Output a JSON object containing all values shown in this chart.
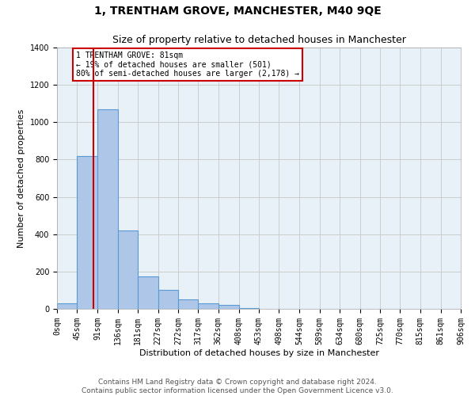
{
  "title": "1, TRENTHAM GROVE, MANCHESTER, M40 9QE",
  "subtitle": "Size of property relative to detached houses in Manchester",
  "xlabel": "Distribution of detached houses by size in Manchester",
  "ylabel": "Number of detached properties",
  "bar_edges": [
    0,
    45,
    91,
    136,
    181,
    227,
    272,
    317,
    362,
    408,
    453,
    498,
    544,
    589,
    634,
    680,
    725,
    770,
    815,
    861,
    906
  ],
  "bar_heights": [
    30,
    820,
    1070,
    420,
    175,
    100,
    50,
    30,
    20,
    5,
    0,
    0,
    0,
    0,
    0,
    0,
    0,
    0,
    0,
    0
  ],
  "bar_color": "#aec6e8",
  "bar_edge_color": "#5b9bd5",
  "property_line_x": 81,
  "property_line_color": "#cc0000",
  "annotation_text": "1 TRENTHAM GROVE: 81sqm\n← 19% of detached houses are smaller (501)\n80% of semi-detached houses are larger (2,178) →",
  "annotation_box_color": "#cc0000",
  "ylim": [
    0,
    1400
  ],
  "yticks": [
    0,
    200,
    400,
    600,
    800,
    1000,
    1200,
    1400
  ],
  "x_tick_labels": [
    "0sqm",
    "45sqm",
    "91sqm",
    "136sqm",
    "181sqm",
    "227sqm",
    "272sqm",
    "317sqm",
    "362sqm",
    "408sqm",
    "453sqm",
    "498sqm",
    "544sqm",
    "589sqm",
    "634sqm",
    "680sqm",
    "725sqm",
    "770sqm",
    "815sqm",
    "861sqm",
    "906sqm"
  ],
  "footer_line1": "Contains HM Land Registry data © Crown copyright and database right 2024.",
  "footer_line2": "Contains public sector information licensed under the Open Government Licence v3.0.",
  "bg_color": "#ffffff",
  "grid_color": "#cccccc",
  "title_fontsize": 10,
  "subtitle_fontsize": 9,
  "axis_label_fontsize": 8,
  "tick_fontsize": 7,
  "footer_fontsize": 6.5,
  "annotation_fontsize": 7
}
